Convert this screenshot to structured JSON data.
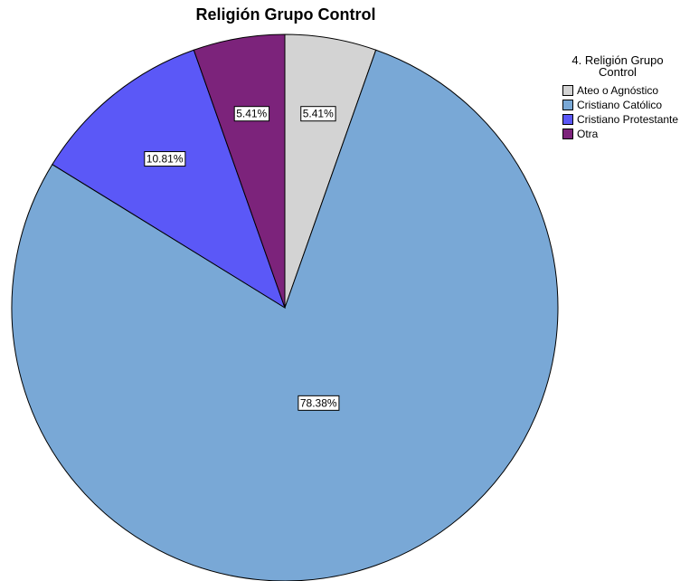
{
  "chart_data": {
    "type": "pie",
    "title": "Religión Grupo Control",
    "legend_title": "4. Religión Grupo Control",
    "legend_position": "top-right",
    "start": "12 o'clock",
    "direction": "clockwise",
    "slices": [
      {
        "label": "Ateo o Agnóstico",
        "value": 5.41,
        "data_label": "5.41%",
        "color": "#d3d3d3"
      },
      {
        "label": "Cristiano Católico",
        "value": 78.38,
        "data_label": "78.38%",
        "color": "#79a8d6"
      },
      {
        "label": "Cristiano Protestante",
        "value": 10.81,
        "data_label": "10.81%",
        "color": "#5b58f7"
      },
      {
        "label": "Otra",
        "value": 5.41,
        "data_label": "5.41%",
        "color": "#7c237b"
      }
    ]
  }
}
